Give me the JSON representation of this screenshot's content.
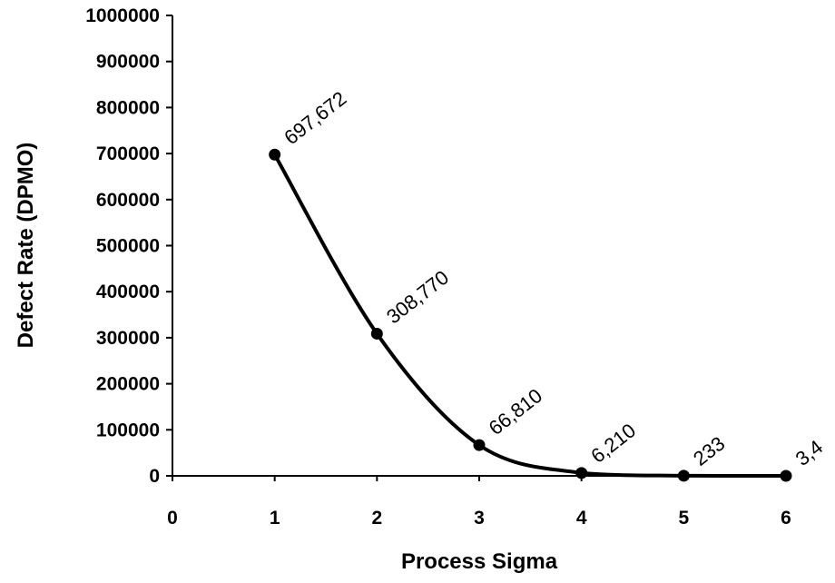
{
  "chart_data": {
    "type": "line",
    "title": "",
    "xlabel": "Process Sigma",
    "ylabel": "Defect Rate (DPMO)",
    "xlim": [
      0,
      6
    ],
    "ylim": [
      0,
      1000000
    ],
    "x_ticks": [
      "0",
      "1",
      "2",
      "3",
      "4",
      "5",
      "6"
    ],
    "y_ticks": [
      "0",
      "100000",
      "200000",
      "300000",
      "400000",
      "500000",
      "600000",
      "700000",
      "800000",
      "900000",
      "1000000"
    ],
    "grid": false,
    "legend": "none",
    "series": [
      {
        "x": [
          1,
          2,
          3,
          4,
          5,
          6
        ],
        "y": [
          697672,
          308770,
          66810,
          6210,
          233,
          3.4
        ],
        "labels": [
          "697,672",
          "308,770",
          "66,810",
          "6,210",
          "233",
          "3,4"
        ],
        "color": "#000000"
      }
    ]
  }
}
